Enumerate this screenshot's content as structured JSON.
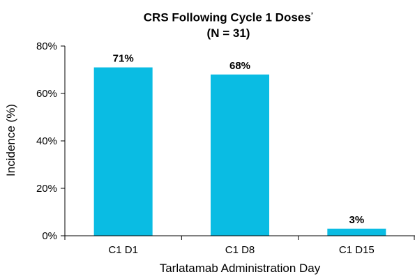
{
  "chart_data": {
    "type": "bar",
    "title": "CRS Following Cycle 1 Doses",
    "title_mark": "*",
    "subtitle": "(N = 31)",
    "xlabel": "Tarlatamab Administration Day",
    "ylabel": "Incidence (%)",
    "categories": [
      "C1 D1",
      "C1 D8",
      "C1 D15"
    ],
    "values": [
      71,
      68,
      3
    ],
    "data_labels": [
      "71%",
      "68%",
      "3%"
    ],
    "ylim": [
      0,
      80
    ],
    "yticks": [
      0,
      20,
      40,
      60,
      80
    ],
    "ytick_labels": [
      "0%",
      "20%",
      "40%",
      "60%",
      "80%"
    ],
    "grid": false,
    "bar_color": "#0ABCE3"
  }
}
